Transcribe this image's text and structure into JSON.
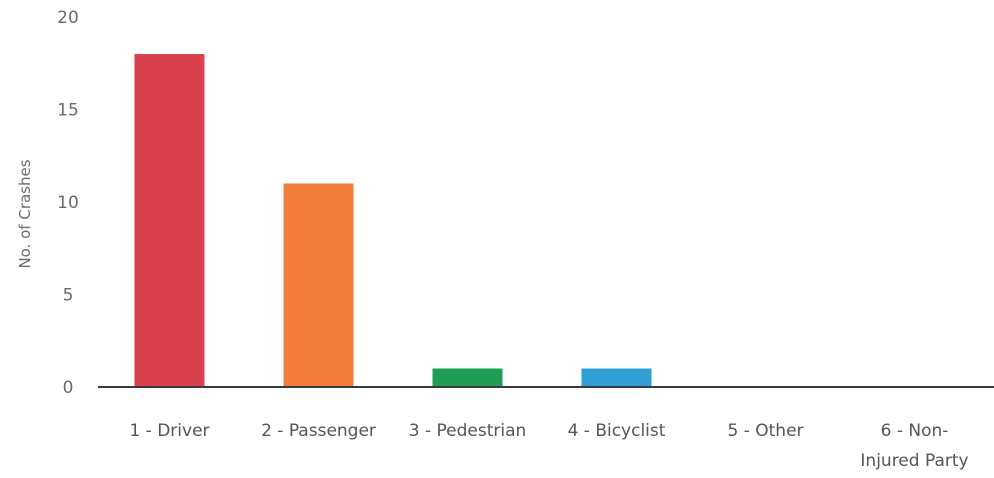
{
  "chart_data": {
    "type": "bar",
    "title": "",
    "xlabel": "",
    "ylabel": "No. of Crashes",
    "ylim": [
      0,
      20
    ],
    "yticks": [
      0,
      5,
      10,
      15,
      20
    ],
    "grid": false,
    "categories": [
      "1 - Driver",
      "2 - Passenger",
      "3 - Pedestrian",
      "4 - Bicyclist",
      "5 - Other",
      "6 - Non-Injured Party"
    ],
    "category_lines": [
      [
        "1 - Driver"
      ],
      [
        "2 - Passenger"
      ],
      [
        "3 - Pedestrian"
      ],
      [
        "4 - Bicyclist"
      ],
      [
        "5 - Other"
      ],
      [
        "6 - Non-",
        "Injured Party"
      ]
    ],
    "values": [
      18,
      11,
      1,
      1,
      0,
      0
    ],
    "colors": [
      "#d9414f",
      "#f07d3a",
      "#1f9d57",
      "#2f9fd6",
      "#9a9a9a",
      "#9a9a9a"
    ],
    "axis_color": "#3a3a3a"
  }
}
